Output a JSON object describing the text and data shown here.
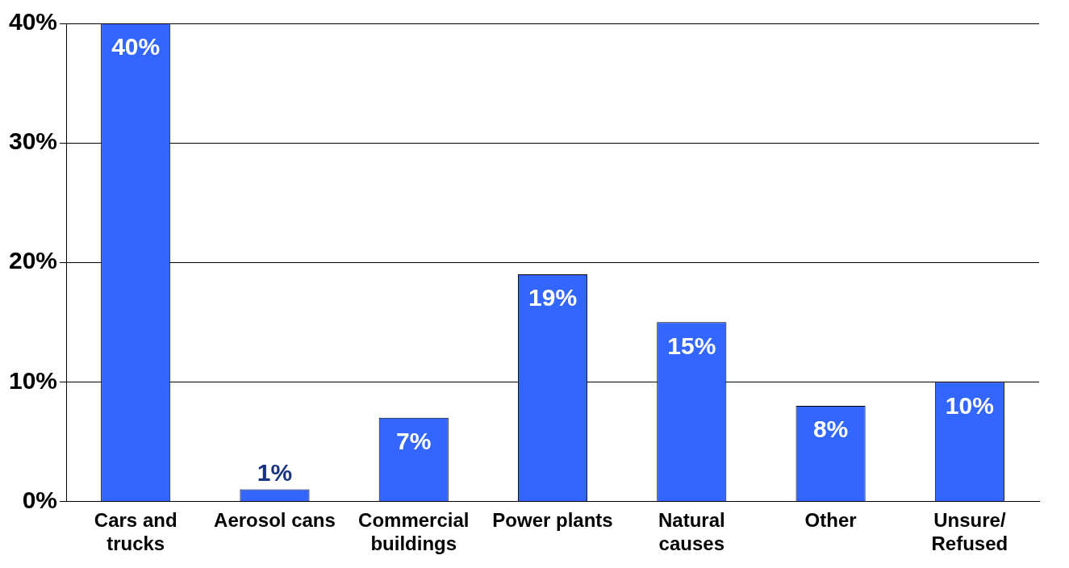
{
  "chart_data": {
    "type": "bar",
    "categories": [
      "Cars and trucks",
      "Aerosol cans",
      "Commercial buildings",
      "Power plants",
      "Natural causes",
      "Other",
      "Unsure/Refused"
    ],
    "values": [
      40,
      1,
      7,
      19,
      15,
      8,
      10
    ],
    "value_labels": [
      "40%",
      "1%",
      "7%",
      "19%",
      "15%",
      "8%",
      "10%"
    ],
    "color": "#3366ff",
    "ylim": [
      0,
      40
    ],
    "yticks": [
      {
        "value": 0,
        "label": "0%"
      },
      {
        "value": 10,
        "label": "10%"
      },
      {
        "value": 20,
        "label": "20%"
      },
      {
        "value": 30,
        "label": "30%"
      },
      {
        "value": 40,
        "label": "40%"
      }
    ],
    "grid": "y"
  }
}
